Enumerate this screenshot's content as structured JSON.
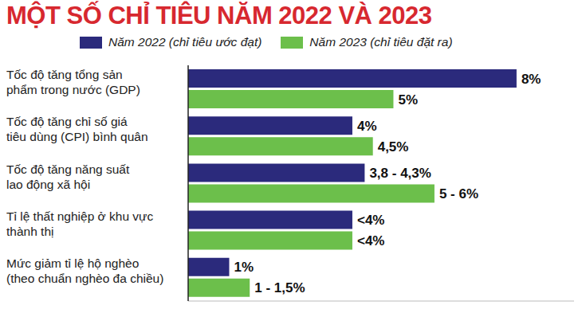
{
  "chart_data": {
    "type": "bar",
    "title": "MỘT SỐ CHỈ TIÊU NĂM 2022 VÀ 2023",
    "orientation": "horizontal",
    "categories": [
      "Tốc độ tăng tổng sản\nphẩm trong nước (GDP)",
      "Tốc độ tăng chỉ số giá\ntiêu dùng (CPI) bình quân",
      "Tốc độ tăng năng suất\nlao động xã hội",
      "Tỉ lệ thất nghiệp ở khu vực\nthành thị",
      "Mức giảm tỉ lệ hộ nghèo\n(theo chuẩn nghèo đa chiều)"
    ],
    "series": [
      {
        "name": "Năm 2022 (chỉ tiêu ước đạt)",
        "color": "#2b2a7c",
        "values": [
          8,
          4,
          4.3,
          4,
          1
        ],
        "value_labels": [
          "8%",
          "4%",
          "3,8 - 4,3%",
          "<4%",
          "1%"
        ]
      },
      {
        "name": "Năm 2023 (chỉ tiêu đặt ra)",
        "color": "#6cbf4b",
        "values": [
          5,
          4.5,
          6,
          4,
          1.5
        ],
        "value_labels": [
          "5%",
          "4,5%",
          "5 - 6%",
          "<4%",
          "1 - 1,5%"
        ]
      }
    ],
    "xlim": [
      0,
      9.4
    ],
    "data_labels": true,
    "tick_labels": "y",
    "legend": "top",
    "grid": false
  }
}
